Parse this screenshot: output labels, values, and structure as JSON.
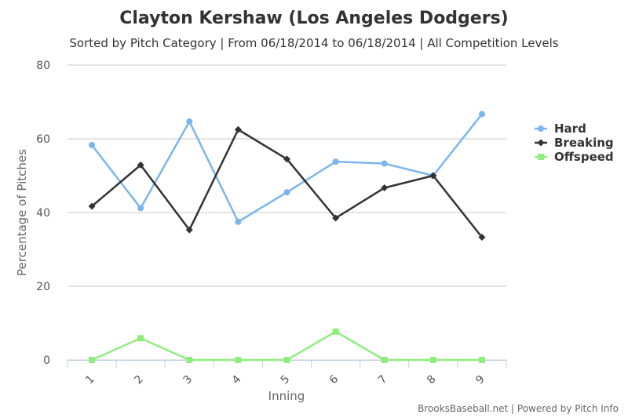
{
  "chart_data": {
    "type": "line",
    "title": "Clayton Kershaw (Los Angeles Dodgers)",
    "subtitle": "Sorted by Pitch Category | From 06/18/2014 to 06/18/2014 | All Competition Levels",
    "xlabel": "Inning",
    "ylabel": "Percentage of Pitches",
    "categories": [
      "1",
      "2",
      "3",
      "4",
      "5",
      "6",
      "7",
      "8",
      "9"
    ],
    "ylim": [
      0,
      80
    ],
    "yticks": [
      0,
      20,
      40,
      60,
      80
    ],
    "grid": true,
    "legend_position": "right",
    "series": [
      {
        "name": "Hard",
        "color": "#7cb5ec",
        "marker": "circle",
        "values": [
          58.3,
          41.2,
          64.7,
          37.5,
          45.5,
          53.8,
          53.3,
          50.0,
          66.7
        ]
      },
      {
        "name": "Breaking",
        "color": "#333333",
        "marker": "diamond",
        "values": [
          41.7,
          52.9,
          35.3,
          62.5,
          54.5,
          38.5,
          46.7,
          50.0,
          33.3
        ]
      },
      {
        "name": "Offspeed",
        "color": "#90ed7d",
        "marker": "square",
        "values": [
          0,
          5.9,
          0,
          0,
          0,
          7.7,
          0,
          0,
          0
        ]
      }
    ]
  },
  "credits": "BrooksBaseball.net | Powered by Pitch Info"
}
